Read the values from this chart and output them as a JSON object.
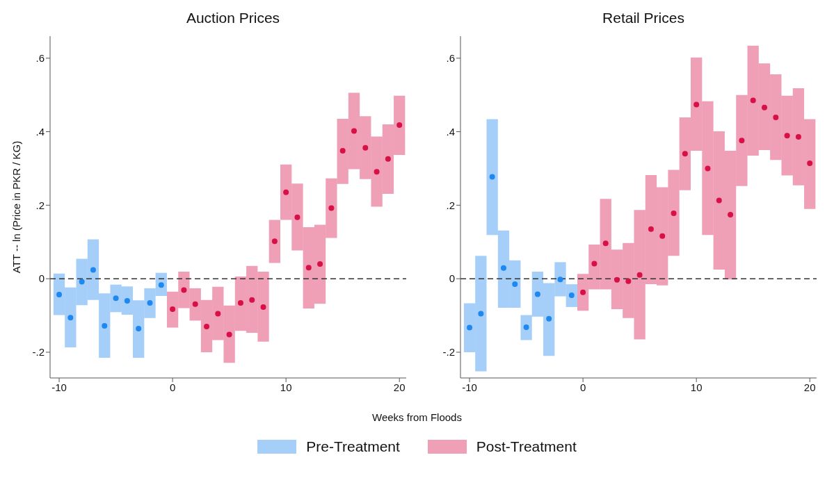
{
  "chart_data": [
    {
      "type": "scatter",
      "title": "Auction Prices",
      "xlabel": "Weeks from Floods",
      "ylabel": "ATT -- ln (Price in PKR / KG)",
      "xlim": [
        -10.8,
        20.6
      ],
      "xticks": [
        -10,
        0,
        10,
        20
      ],
      "ylim": [
        -0.27,
        0.66
      ],
      "yticks": [
        {
          "value": -0.2,
          "label": "-.2"
        },
        0,
        {
          "value": 0.2,
          "label": ".2"
        },
        {
          "value": 0.4,
          "label": ".4"
        },
        {
          "value": 0.6,
          "label": ".6"
        }
      ],
      "grid": false,
      "legend": "bottom",
      "marker": "circle",
      "ref_lines": [
        {
          "axis": "y",
          "value": 0,
          "color": "#333333",
          "line_style": "dashed"
        }
      ],
      "series": [
        {
          "name": "Pre-Treatment",
          "color": "#1e88f0",
          "x": [
            -10,
            -9,
            -8,
            -7,
            -6,
            -5,
            -4,
            -3,
            -2,
            -1
          ],
          "values": [
            -0.043,
            -0.106,
            -0.008,
            0.024,
            -0.128,
            -0.053,
            -0.06,
            -0.136,
            -0.066,
            -0.017
          ],
          "errors": [
            [
              -0.099,
              0.014
            ],
            [
              -0.187,
              -0.024
            ],
            [
              -0.072,
              0.054
            ],
            [
              -0.058,
              0.107
            ],
            [
              -0.215,
              -0.04
            ],
            [
              -0.091,
              -0.016
            ],
            [
              -0.098,
              -0.021
            ],
            [
              -0.215,
              -0.059
            ],
            [
              -0.107,
              -0.026
            ],
            [
              -0.047,
              0.016
            ]
          ]
        },
        {
          "name": "Post-Treatment",
          "color": "#d81048",
          "x": [
            0,
            1,
            2,
            3,
            4,
            5,
            6,
            7,
            8,
            9,
            10,
            11,
            12,
            13,
            14,
            15,
            16,
            17,
            18,
            19,
            20
          ],
          "values": [
            -0.083,
            -0.031,
            -0.069,
            -0.13,
            -0.095,
            -0.152,
            -0.066,
            -0.058,
            -0.077,
            0.102,
            0.235,
            0.167,
            0.03,
            0.04,
            0.192,
            0.348,
            0.402,
            0.356,
            0.291,
            0.326,
            0.418
          ],
          "errors": [
            [
              -0.133,
              -0.035
            ],
            [
              -0.08,
              0.019
            ],
            [
              -0.114,
              -0.026
            ],
            [
              -0.2,
              -0.058
            ],
            [
              -0.167,
              -0.022
            ],
            [
              -0.229,
              -0.073
            ],
            [
              -0.142,
              0.006
            ],
            [
              -0.147,
              0.035
            ],
            [
              -0.171,
              0.019
            ],
            [
              0.043,
              0.16
            ],
            [
              0.16,
              0.311
            ],
            [
              0.077,
              0.259
            ],
            [
              -0.081,
              0.14
            ],
            [
              -0.068,
              0.147
            ],
            [
              0.111,
              0.273
            ],
            [
              0.258,
              0.435
            ],
            [
              0.298,
              0.506
            ],
            [
              0.271,
              0.442
            ],
            [
              0.196,
              0.387
            ],
            [
              0.231,
              0.42
            ],
            [
              0.337,
              0.498
            ]
          ]
        }
      ]
    },
    {
      "type": "scatter",
      "title": "Retail Prices",
      "xlim": [
        -10.8,
        20.6
      ],
      "xticks": [
        -10,
        0,
        10,
        20
      ],
      "ylim": [
        -0.27,
        0.66
      ],
      "yticks": [
        {
          "value": -0.2,
          "label": "-.2"
        },
        0,
        {
          "value": 0.2,
          "label": ".2"
        },
        {
          "value": 0.4,
          "label": ".4"
        },
        {
          "value": 0.6,
          "label": ".6"
        }
      ],
      "grid": false,
      "marker": "circle",
      "ref_lines": [
        {
          "axis": "y",
          "value": 0,
          "color": "#333333",
          "line_style": "dashed"
        }
      ],
      "series": [
        {
          "color": "#1e88f0",
          "x": [
            -10,
            -9,
            -8,
            -7,
            -6,
            -5,
            -4,
            -3,
            -2,
            -1
          ],
          "values": [
            -0.133,
            -0.095,
            0.277,
            0.029,
            -0.015,
            -0.132,
            -0.042,
            -0.109,
            -0.002,
            -0.045
          ],
          "errors": [
            [
              -0.2,
              -0.067
            ],
            [
              -0.252,
              0.062
            ],
            [
              0.119,
              0.434
            ],
            [
              -0.079,
              0.131
            ],
            [
              -0.079,
              0.05
            ],
            [
              -0.167,
              -0.099
            ],
            [
              -0.103,
              0.019
            ],
            [
              -0.21,
              -0.012
            ],
            [
              -0.048,
              0.045
            ],
            [
              -0.077,
              -0.015
            ]
          ]
        },
        {
          "color": "#d81048",
          "x": [
            0,
            1,
            2,
            3,
            4,
            5,
            6,
            7,
            8,
            9,
            10,
            11,
            12,
            13,
            14,
            15,
            16,
            17,
            18,
            19,
            20
          ],
          "values": [
            -0.037,
            0.041,
            0.096,
            -0.003,
            -0.007,
            0.01,
            0.135,
            0.116,
            0.178,
            0.34,
            0.474,
            0.3,
            0.213,
            0.174,
            0.376,
            0.485,
            0.466,
            0.439,
            0.389,
            0.386,
            0.314
          ],
          "errors": [
            [
              -0.087,
              0.013
            ],
            [
              -0.029,
              0.093
            ],
            [
              -0.029,
              0.217
            ],
            [
              -0.083,
              0.079
            ],
            [
              -0.107,
              0.097
            ],
            [
              -0.165,
              0.187
            ],
            [
              -0.015,
              0.282
            ],
            [
              -0.018,
              0.249
            ],
            [
              0.062,
              0.296
            ],
            [
              0.241,
              0.439
            ],
            [
              0.348,
              0.602
            ],
            [
              0.119,
              0.483
            ],
            [
              0.025,
              0.401
            ],
            [
              -0.002,
              0.348
            ],
            [
              0.252,
              0.5
            ],
            [
              0.335,
              0.634
            ],
            [
              0.35,
              0.586
            ],
            [
              0.323,
              0.556
            ],
            [
              0.281,
              0.498
            ],
            [
              0.254,
              0.518
            ],
            [
              0.19,
              0.434
            ]
          ]
        }
      ]
    }
  ]
}
